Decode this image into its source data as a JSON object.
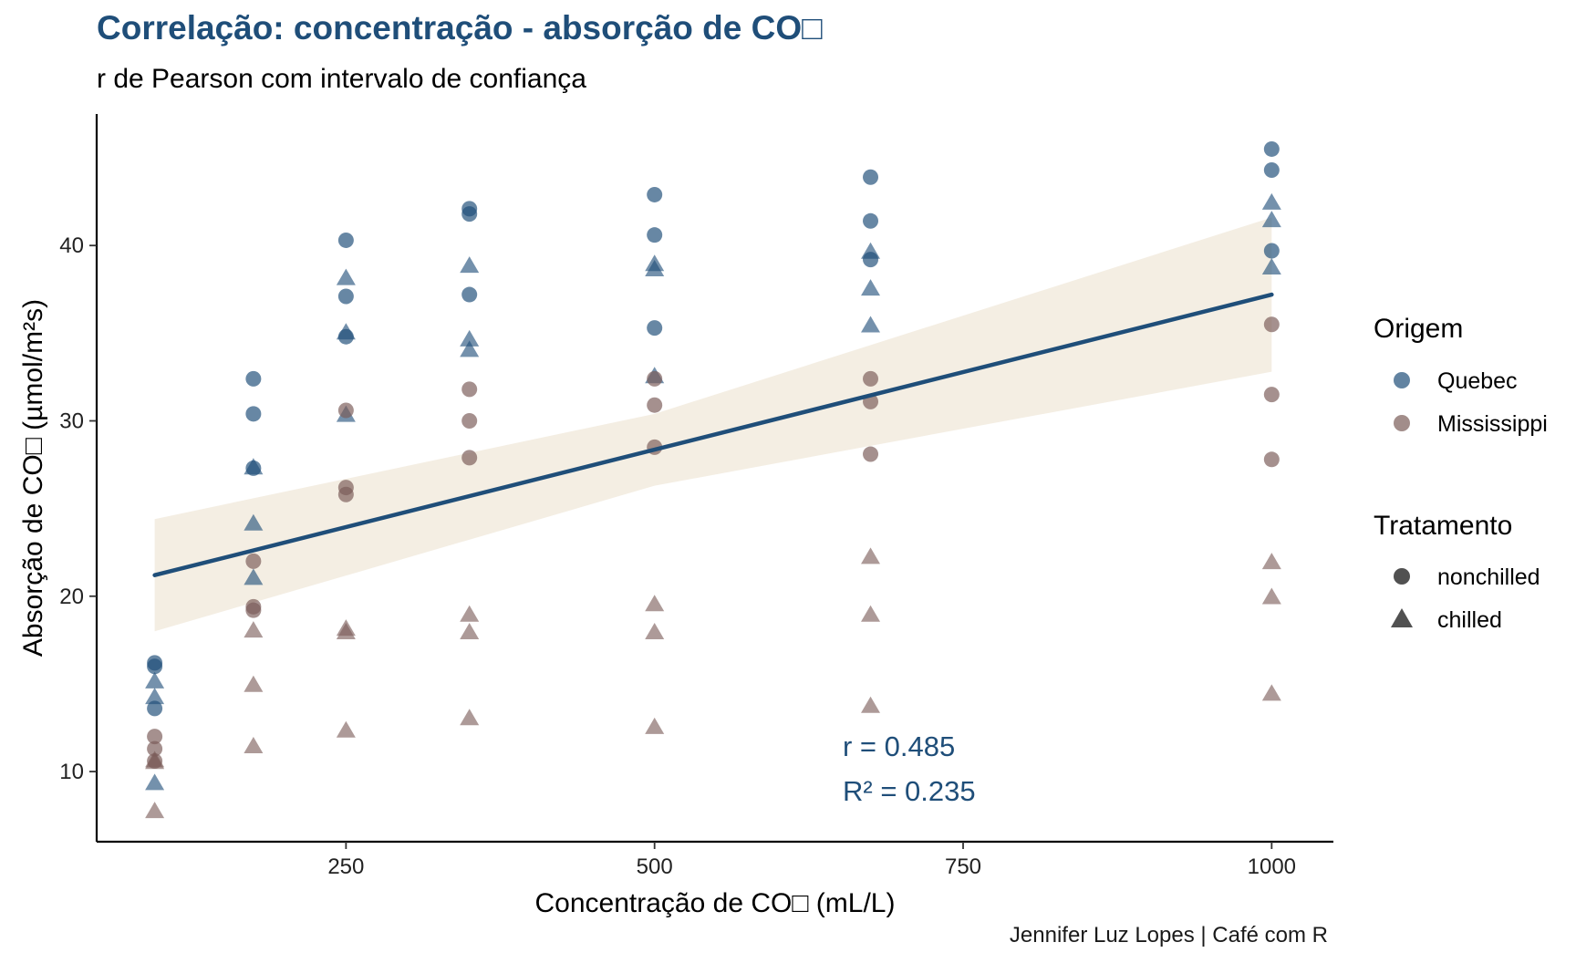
{
  "title": "Correlação: concentração - absorção de CO□",
  "subtitle": "r de Pearson com intervalo de confiança",
  "caption": "Jennifer Luz Lopes | Café com R",
  "colors": {
    "quebec": "#1f4e79",
    "mississippi": "#7a5c58",
    "ribbon": "#f3ece0",
    "accent": "#1f4e79"
  },
  "legend": {
    "origem_title": "Origem",
    "origem_items": [
      "Quebec",
      "Mississippi"
    ],
    "tratamento_title": "Tratamento",
    "tratamento_items": [
      "nonchilled",
      "chilled"
    ]
  },
  "chart_data": {
    "type": "scatter",
    "title": "Correlação: concentração - absorção de CO□",
    "subtitle": "r de Pearson com intervalo de confiança",
    "xlabel": "Concentração de CO□ (mL/L)",
    "ylabel": "Absorção de CO□ (µmol/m²s)",
    "xlim": [
      48,
      1050
    ],
    "ylim": [
      6,
      47.5
    ],
    "xticks": [
      250,
      500,
      750,
      1000
    ],
    "yticks": [
      10,
      20,
      30,
      40
    ],
    "grid": false,
    "legend_position": "right",
    "series": [
      {
        "origem": "Quebec",
        "tratamento": "nonchilled",
        "marker": "circle",
        "x": [
          95,
          95,
          95,
          175,
          175,
          175,
          250,
          250,
          250,
          350,
          350,
          350,
          500,
          500,
          500,
          675,
          675,
          675,
          1000,
          1000,
          1000
        ],
        "y": [
          16.0,
          13.6,
          16.2,
          30.4,
          27.3,
          32.4,
          34.8,
          37.1,
          40.3,
          37.2,
          41.8,
          42.1,
          35.3,
          40.6,
          42.9,
          39.2,
          41.4,
          43.9,
          39.7,
          44.3,
          45.5
        ]
      },
      {
        "origem": "Quebec",
        "tratamento": "chilled",
        "marker": "triangle",
        "x": [
          95,
          95,
          95,
          175,
          175,
          175,
          250,
          250,
          250,
          350,
          350,
          350,
          500,
          500,
          500,
          675,
          675,
          675,
          1000,
          1000,
          1000
        ],
        "y": [
          14.2,
          9.3,
          15.1,
          24.1,
          27.3,
          21.0,
          30.3,
          35.0,
          38.1,
          34.6,
          38.8,
          34.0,
          32.5,
          38.9,
          38.6,
          35.4,
          37.5,
          39.6,
          38.7,
          42.4,
          41.4
        ]
      },
      {
        "origem": "Mississippi",
        "tratamento": "nonchilled",
        "marker": "circle",
        "x": [
          95,
          95,
          95,
          175,
          175,
          175,
          250,
          250,
          250,
          350,
          350,
          350,
          500,
          500,
          500,
          675,
          675,
          675,
          1000,
          1000,
          1000
        ],
        "y": [
          10.6,
          12.0,
          11.3,
          19.2,
          22.0,
          19.4,
          26.2,
          30.6,
          25.8,
          30.0,
          31.8,
          27.9,
          30.9,
          32.4,
          28.5,
          32.4,
          31.1,
          28.1,
          35.5,
          31.5,
          27.8
        ]
      },
      {
        "origem": "Mississippi",
        "tratamento": "chilled",
        "marker": "triangle",
        "x": [
          95,
          95,
          95,
          175,
          175,
          175,
          250,
          250,
          250,
          350,
          350,
          350,
          500,
          500,
          500,
          675,
          675,
          675,
          1000,
          1000,
          1000
        ],
        "y": [
          10.5,
          7.7,
          10.6,
          14.9,
          11.4,
          18.0,
          18.1,
          12.3,
          17.9,
          18.9,
          13.0,
          17.9,
          19.5,
          12.5,
          17.9,
          22.2,
          13.7,
          18.9,
          21.9,
          14.4,
          19.9
        ]
      }
    ],
    "regression": {
      "x": [
        95,
        1000
      ],
      "y": [
        21.2,
        37.2
      ]
    },
    "confidence_band": {
      "x": [
        95,
        500,
        1000
      ],
      "lower": [
        18.0,
        26.3,
        32.8
      ],
      "upper": [
        24.4,
        30.4,
        41.6
      ]
    },
    "annotations": [
      "r = 0.485",
      "R² = 0.235"
    ]
  }
}
